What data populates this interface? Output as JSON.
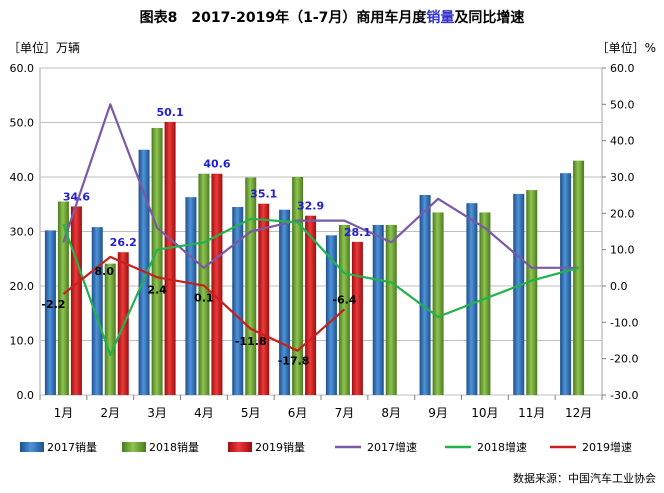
{
  "chart_data": {
    "type": "bar",
    "title": {
      "prefix": "图表8",
      "main_a": "2017-2019年（1-7月）商用车月度",
      "main_highlight": "销量",
      "main_b": "及同比增速"
    },
    "left_unit": "［单位］万辆",
    "right_unit": "［单位］%",
    "categories": [
      "1月",
      "2月",
      "3月",
      "4月",
      "5月",
      "6月",
      "7月",
      "8月",
      "9月",
      "10月",
      "11月",
      "12月"
    ],
    "y_left": {
      "min": 0,
      "max": 60,
      "step": 10,
      "ticks": [
        "0.0",
        "10.0",
        "20.0",
        "30.0",
        "40.0",
        "50.0",
        "60.0"
      ]
    },
    "y_right": {
      "min": -30,
      "max": 60,
      "step": 10,
      "ticks": [
        "-30.0",
        "-20.0",
        "-10.0",
        "0.0",
        "10.0",
        "20.0",
        "30.0",
        "40.0",
        "50.0",
        "60.0"
      ]
    },
    "bar_series": [
      {
        "name": "2017销量",
        "color": "#2e6fb5",
        "values": [
          30.2,
          30.8,
          45.0,
          36.3,
          34.5,
          34.0,
          29.3,
          31.2,
          36.7,
          35.2,
          36.9,
          40.7
        ]
      },
      {
        "name": "2018销量",
        "color": "#6fa637",
        "values": [
          35.5,
          24.1,
          49.0,
          40.6,
          39.9,
          40.0,
          31.2,
          31.2,
          33.5,
          33.5,
          37.6,
          43.0
        ]
      },
      {
        "name": "2019销量",
        "color": "#d42020",
        "values": [
          34.6,
          26.2,
          50.1,
          40.6,
          35.1,
          32.9,
          28.1,
          null,
          null,
          null,
          null,
          null
        ]
      }
    ],
    "line_series": [
      {
        "name": "2017增速",
        "color": "#7a5aa6",
        "values": [
          12,
          50,
          16,
          5,
          15,
          18,
          18,
          12,
          24,
          16,
          5,
          5
        ]
      },
      {
        "name": "2018增速",
        "color": "#22b24c",
        "values": [
          17,
          -19,
          10,
          12,
          18.5,
          17.5,
          3.5,
          1,
          -8.5,
          -3.5,
          1.5,
          5
        ]
      },
      {
        "name": "2019增速",
        "color": "#c8201c",
        "values": [
          -2.2,
          8.0,
          2.4,
          0.1,
          -11.8,
          -17.8,
          -6.4,
          null,
          null,
          null,
          null,
          null
        ]
      }
    ],
    "bar_labels_2019": [
      "34.6",
      "26.2",
      "50.1",
      "40.6",
      "35.1",
      "32.9",
      "28.1"
    ],
    "line_labels_2019": [
      "-2.2",
      "8.0",
      "2.4",
      "0.1",
      "-11.8",
      "-17.8",
      "-6.4"
    ],
    "legend_position": "bottom",
    "grid": true
  },
  "source": "数据来源：中国汽车工业协会",
  "colors": {
    "highlight": "#3333cc",
    "axis": "#000000",
    "grid": "#a6a6a6",
    "blue_label": "#1f1fd6"
  }
}
